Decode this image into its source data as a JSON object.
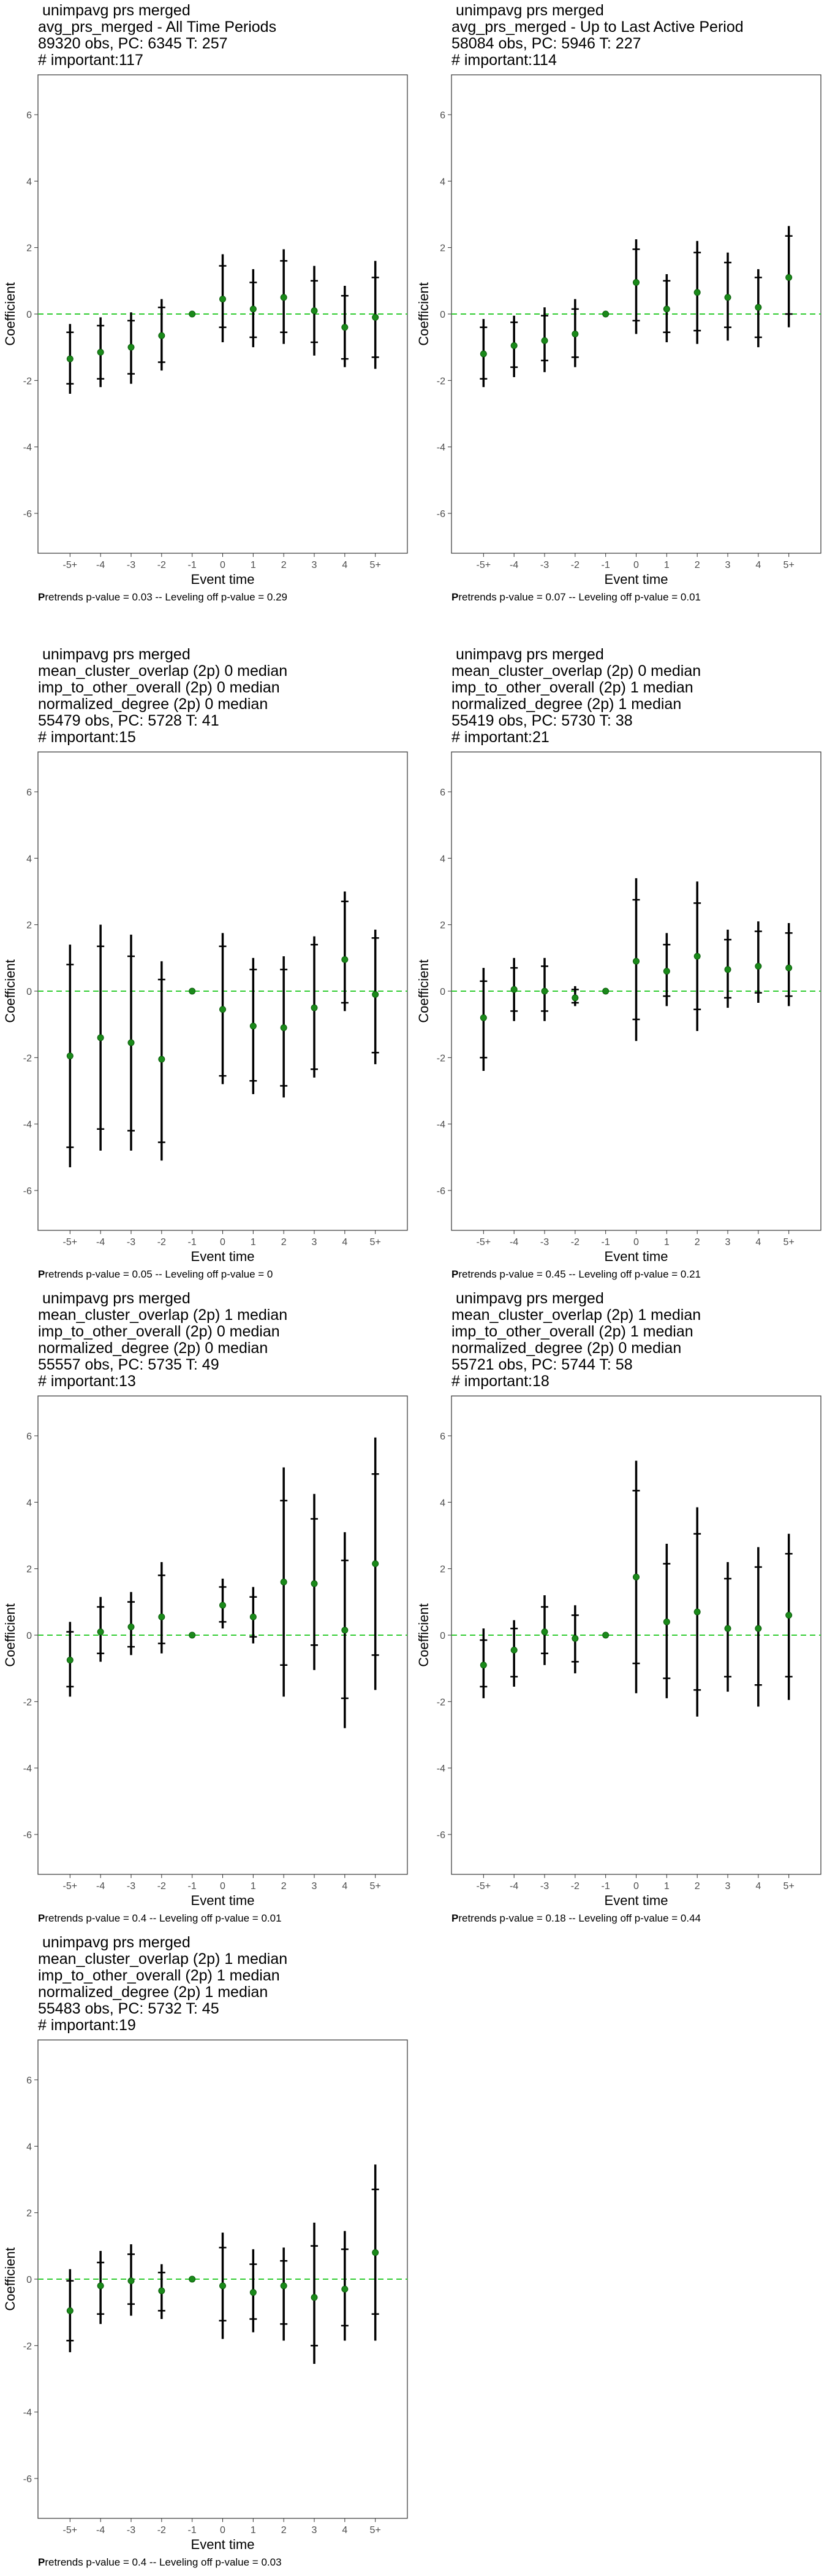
{
  "chart_data": [
    {
      "type": "scatter",
      "title_lines": [
        " unimpavg prs merged",
        "avg_prs_merged - All Time Periods",
        "89320 obs, PC: 6345 T: 257",
        "# important:117"
      ],
      "xlabel": "Event time",
      "ylabel": "Coefficient",
      "categories": [
        "-5+",
        "-4",
        "-3",
        "-2",
        "-1",
        "0",
        "1",
        "2",
        "3",
        "4",
        "5+"
      ],
      "ylim": [
        -7.2,
        7.2
      ],
      "yticks": [
        -6,
        -4,
        -2,
        0,
        2,
        4,
        6
      ],
      "estimate": [
        -1.35,
        -1.15,
        -1.0,
        -0.65,
        0,
        0.45,
        0.15,
        0.5,
        0.1,
        -0.4,
        -0.1
      ],
      "ci_outer": [
        [
          -2.4,
          -0.3
        ],
        [
          -2.2,
          -0.1
        ],
        [
          -2.1,
          0.05
        ],
        [
          -1.7,
          0.45
        ],
        [
          0,
          0
        ],
        [
          -0.85,
          1.8
        ],
        [
          -1.0,
          1.35
        ],
        [
          -0.9,
          1.95
        ],
        [
          -1.25,
          1.45
        ],
        [
          -1.6,
          0.85
        ],
        [
          -1.65,
          1.6
        ]
      ],
      "ci_inner": [
        [
          -2.1,
          -0.55
        ],
        [
          -1.95,
          -0.35
        ],
        [
          -1.8,
          -0.2
        ],
        [
          -1.45,
          0.2
        ],
        [
          0,
          0
        ],
        [
          -0.4,
          1.45
        ],
        [
          -0.7,
          0.95
        ],
        [
          -0.55,
          1.6
        ],
        [
          -0.85,
          1.0
        ],
        [
          -1.35,
          0.55
        ],
        [
          -1.3,
          1.1
        ]
      ],
      "caption_bold": "P",
      "caption_rest": "retrends p-value = 0.03 -- Leveling off p-value = 0.29",
      "reference_line_y": 0
    },
    {
      "type": "scatter",
      "title_lines": [
        " unimpavg prs merged",
        "avg_prs_merged - Up to Last Active Period",
        "58084 obs, PC: 5946 T: 227",
        "# important:114"
      ],
      "xlabel": "Event time",
      "ylabel": "Coefficient",
      "categories": [
        "-5+",
        "-4",
        "-3",
        "-2",
        "-1",
        "0",
        "1",
        "2",
        "3",
        "4",
        "5+"
      ],
      "ylim": [
        -7.2,
        7.2
      ],
      "yticks": [
        -6,
        -4,
        -2,
        0,
        2,
        4,
        6
      ],
      "estimate": [
        -1.2,
        -0.95,
        -0.8,
        -0.6,
        0,
        0.95,
        0.15,
        0.65,
        0.5,
        0.2,
        1.1
      ],
      "ci_outer": [
        [
          -2.2,
          -0.15
        ],
        [
          -1.9,
          -0.05
        ],
        [
          -1.75,
          0.2
        ],
        [
          -1.6,
          0.45
        ],
        [
          0,
          0
        ],
        [
          -0.6,
          2.25
        ],
        [
          -0.85,
          1.2
        ],
        [
          -0.9,
          2.2
        ],
        [
          -0.8,
          1.85
        ],
        [
          -1.0,
          1.35
        ],
        [
          -0.4,
          2.65
        ]
      ],
      "ci_inner": [
        [
          -1.95,
          -0.4
        ],
        [
          -1.6,
          -0.25
        ],
        [
          -1.4,
          -0.05
        ],
        [
          -1.3,
          0.15
        ],
        [
          0,
          0
        ],
        [
          -0.2,
          1.95
        ],
        [
          -0.55,
          1.0
        ],
        [
          -0.5,
          1.85
        ],
        [
          -0.4,
          1.55
        ],
        [
          -0.7,
          1.1
        ],
        [
          0.0,
          2.35
        ]
      ],
      "caption_bold": "P",
      "caption_rest": "retrends p-value = 0.07 -- Leveling off p-value = 0.01",
      "reference_line_y": 0
    },
    {
      "type": "scatter",
      "title_lines": [
        " unimpavg prs merged",
        "mean_cluster_overlap (2p) 0 median",
        "imp_to_other_overall (2p) 0 median",
        "normalized_degree (2p) 0 median",
        "55479 obs, PC: 5728 T: 41",
        "# important:15"
      ],
      "xlabel": "Event time",
      "ylabel": "Coefficient",
      "categories": [
        "-5+",
        "-4",
        "-3",
        "-2",
        "-1",
        "0",
        "1",
        "2",
        "3",
        "4",
        "5+"
      ],
      "ylim": [
        -7.2,
        7.2
      ],
      "yticks": [
        -6,
        -4,
        -2,
        0,
        2,
        4,
        6
      ],
      "estimate": [
        -1.95,
        -1.4,
        -1.55,
        -2.05,
        0,
        -0.55,
        -1.05,
        -1.1,
        -0.5,
        0.95,
        -0.1
      ],
      "ci_outer": [
        [
          -5.3,
          1.4
        ],
        [
          -4.8,
          2.0
        ],
        [
          -4.8,
          1.7
        ],
        [
          -5.1,
          0.9
        ],
        [
          0,
          0
        ],
        [
          -2.8,
          1.75
        ],
        [
          -3.1,
          1.0
        ],
        [
          -3.2,
          1.05
        ],
        [
          -2.6,
          1.65
        ],
        [
          -0.6,
          3.0
        ],
        [
          -2.2,
          1.85
        ]
      ],
      "ci_inner": [
        [
          -4.7,
          0.8
        ],
        [
          -4.15,
          1.35
        ],
        [
          -4.2,
          1.05
        ],
        [
          -4.55,
          0.35
        ],
        [
          0,
          0
        ],
        [
          -2.55,
          1.35
        ],
        [
          -2.7,
          0.65
        ],
        [
          -2.85,
          0.65
        ],
        [
          -2.35,
          1.4
        ],
        [
          -0.35,
          2.7
        ],
        [
          -1.85,
          1.6
        ]
      ],
      "caption_bold": "P",
      "caption_rest": "retrends p-value = 0.05 -- Leveling off p-value = 0",
      "reference_line_y": 0
    },
    {
      "type": "scatter",
      "title_lines": [
        " unimpavg prs merged",
        "mean_cluster_overlap (2p) 0 median",
        "imp_to_other_overall (2p) 1 median",
        "normalized_degree (2p) 1 median",
        "55419 obs, PC: 5730 T: 38",
        "# important:21"
      ],
      "xlabel": "Event time",
      "ylabel": "Coefficient",
      "categories": [
        "-5+",
        "-4",
        "-3",
        "-2",
        "-1",
        "0",
        "1",
        "2",
        "3",
        "4",
        "5+"
      ],
      "ylim": [
        -7.2,
        7.2
      ],
      "yticks": [
        -6,
        -4,
        -2,
        0,
        2,
        4,
        6
      ],
      "estimate": [
        -0.8,
        0.05,
        0.0,
        -0.2,
        0,
        0.9,
        0.6,
        1.05,
        0.65,
        0.75,
        0.7
      ],
      "ci_outer": [
        [
          -2.4,
          0.7
        ],
        [
          -0.9,
          1.0
        ],
        [
          -0.9,
          1.0
        ],
        [
          -0.45,
          0.15
        ],
        [
          0,
          0
        ],
        [
          -1.5,
          3.4
        ],
        [
          -0.45,
          1.75
        ],
        [
          -1.2,
          3.3
        ],
        [
          -0.5,
          1.85
        ],
        [
          -0.35,
          2.1
        ],
        [
          -0.45,
          2.05
        ]
      ],
      "ci_inner": [
        [
          -2.0,
          0.3
        ],
        [
          -0.6,
          0.7
        ],
        [
          -0.6,
          0.75
        ],
        [
          -0.35,
          0.05
        ],
        [
          0,
          0
        ],
        [
          -0.85,
          2.75
        ],
        [
          -0.15,
          1.4
        ],
        [
          -0.55,
          2.65
        ],
        [
          -0.2,
          1.55
        ],
        [
          -0.05,
          1.8
        ],
        [
          -0.15,
          1.75
        ]
      ],
      "caption_bold": "P",
      "caption_rest": "retrends p-value = 0.45 -- Leveling off p-value = 0.21",
      "reference_line_y": 0
    },
    {
      "type": "scatter",
      "title_lines": [
        " unimpavg prs merged",
        "mean_cluster_overlap (2p) 1 median",
        "imp_to_other_overall (2p) 0 median",
        "normalized_degree (2p) 0 median",
        "55557 obs, PC: 5735 T: 49",
        "# important:13"
      ],
      "xlabel": "Event time",
      "ylabel": "Coefficient",
      "categories": [
        "-5+",
        "-4",
        "-3",
        "-2",
        "-1",
        "0",
        "1",
        "2",
        "3",
        "4",
        "5+"
      ],
      "ylim": [
        -7.2,
        7.2
      ],
      "yticks": [
        -6,
        -4,
        -2,
        0,
        2,
        4,
        6
      ],
      "estimate": [
        -0.75,
        0.1,
        0.25,
        0.55,
        0,
        0.9,
        0.55,
        1.6,
        1.55,
        0.15,
        2.15
      ],
      "ci_outer": [
        [
          -1.85,
          0.4
        ],
        [
          -0.8,
          1.15
        ],
        [
          -0.6,
          1.3
        ],
        [
          -0.55,
          2.2
        ],
        [
          0,
          0
        ],
        [
          0.2,
          1.7
        ],
        [
          -0.25,
          1.45
        ],
        [
          -1.85,
          5.05
        ],
        [
          -1.05,
          4.25
        ],
        [
          -2.8,
          3.1
        ],
        [
          -1.65,
          5.95
        ]
      ],
      "ci_inner": [
        [
          -1.55,
          0.1
        ],
        [
          -0.55,
          0.85
        ],
        [
          -0.35,
          1.0
        ],
        [
          -0.25,
          1.8
        ],
        [
          0,
          0
        ],
        [
          0.4,
          1.45
        ],
        [
          -0.05,
          1.15
        ],
        [
          -0.9,
          4.05
        ],
        [
          -0.3,
          3.5
        ],
        [
          -1.9,
          2.25
        ],
        [
          -0.6,
          4.85
        ]
      ],
      "caption_bold": "P",
      "caption_rest": "retrends p-value = 0.4 -- Leveling off p-value = 0.01",
      "reference_line_y": 0
    },
    {
      "type": "scatter",
      "title_lines": [
        " unimpavg prs merged",
        "mean_cluster_overlap (2p) 1 median",
        "imp_to_other_overall (2p) 1 median",
        "normalized_degree (2p) 0 median",
        "55721 obs, PC: 5744 T: 58",
        "# important:18"
      ],
      "xlabel": "Event time",
      "ylabel": "Coefficient",
      "categories": [
        "-5+",
        "-4",
        "-3",
        "-2",
        "-1",
        "0",
        "1",
        "2",
        "3",
        "4",
        "5+"
      ],
      "ylim": [
        -7.2,
        7.2
      ],
      "yticks": [
        -6,
        -4,
        -2,
        0,
        2,
        4,
        6
      ],
      "estimate": [
        -0.9,
        -0.45,
        0.1,
        -0.1,
        0,
        1.75,
        0.4,
        0.7,
        0.2,
        0.2,
        0.6
      ],
      "ci_outer": [
        [
          -1.9,
          0.2
        ],
        [
          -1.55,
          0.45
        ],
        [
          -0.9,
          1.2
        ],
        [
          -1.15,
          0.9
        ],
        [
          0,
          0
        ],
        [
          -1.75,
          5.25
        ],
        [
          -1.9,
          2.75
        ],
        [
          -2.45,
          3.85
        ],
        [
          -1.7,
          2.2
        ],
        [
          -2.15,
          2.65
        ],
        [
          -1.95,
          3.05
        ]
      ],
      "ci_inner": [
        [
          -1.55,
          -0.15
        ],
        [
          -1.25,
          0.2
        ],
        [
          -0.55,
          0.85
        ],
        [
          -0.8,
          0.6
        ],
        [
          0,
          0
        ],
        [
          -0.85,
          4.35
        ],
        [
          -1.3,
          2.15
        ],
        [
          -1.65,
          3.05
        ],
        [
          -1.25,
          1.7
        ],
        [
          -1.5,
          2.05
        ],
        [
          -1.25,
          2.45
        ]
      ],
      "caption_bold": "P",
      "caption_rest": "retrends p-value = 0.18 -- Leveling off p-value = 0.44",
      "reference_line_y": 0
    },
    {
      "type": "scatter",
      "title_lines": [
        " unimpavg prs merged",
        "mean_cluster_overlap (2p) 1 median",
        "imp_to_other_overall (2p) 1 median",
        "normalized_degree (2p) 1 median",
        "55483 obs, PC: 5732 T: 45",
        "# important:19"
      ],
      "xlabel": "Event time",
      "ylabel": "Coefficient",
      "categories": [
        "-5+",
        "-4",
        "-3",
        "-2",
        "-1",
        "0",
        "1",
        "2",
        "3",
        "4",
        "5+"
      ],
      "ylim": [
        -7.2,
        7.2
      ],
      "yticks": [
        -6,
        -4,
        -2,
        0,
        2,
        4,
        6
      ],
      "estimate": [
        -0.95,
        -0.2,
        -0.05,
        -0.35,
        0,
        -0.2,
        -0.4,
        -0.2,
        -0.55,
        -0.3,
        0.8
      ],
      "ci_outer": [
        [
          -2.2,
          0.3
        ],
        [
          -1.35,
          0.85
        ],
        [
          -1.1,
          1.05
        ],
        [
          -1.2,
          0.45
        ],
        [
          0,
          0
        ],
        [
          -1.8,
          1.4
        ],
        [
          -1.6,
          0.9
        ],
        [
          -1.85,
          0.95
        ],
        [
          -2.55,
          1.7
        ],
        [
          -1.85,
          1.45
        ],
        [
          -1.85,
          3.45
        ]
      ],
      "ci_inner": [
        [
          -1.85,
          -0.05
        ],
        [
          -1.05,
          0.5
        ],
        [
          -0.75,
          0.75
        ],
        [
          -0.95,
          0.2
        ],
        [
          0,
          0
        ],
        [
          -1.25,
          0.95
        ],
        [
          -1.2,
          0.45
        ],
        [
          -1.35,
          0.55
        ],
        [
          -2.0,
          1.0
        ],
        [
          -1.4,
          0.9
        ],
        [
          -1.05,
          2.7
        ]
      ],
      "caption_bold": "P",
      "caption_rest": "retrends p-value = 0.4 -- Leveling off p-value = 0.03",
      "reference_line_y": 0
    }
  ],
  "colors": {
    "point": "#1a8a1a",
    "errorbar": "#000000",
    "reference_line": "#33cc33",
    "axis_text": "#4d4d4d",
    "panel_border": "#333333"
  }
}
